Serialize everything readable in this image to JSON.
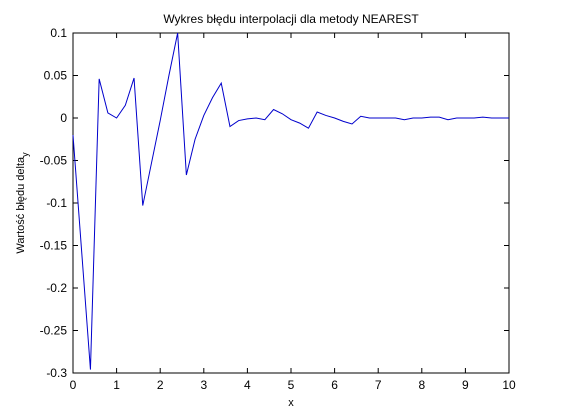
{
  "chart_data": {
    "type": "line",
    "title": "Wykres błędu interpolacji dla metody NEAREST",
    "xlabel": "x",
    "ylabel_main": "Wartość błędu delta",
    "ylabel_sub": "y",
    "xlim": [
      0,
      10
    ],
    "ylim": [
      -0.3,
      0.1
    ],
    "xticks": [
      0,
      1,
      2,
      3,
      4,
      5,
      6,
      7,
      8,
      9,
      10
    ],
    "xtick_labels": [
      "0",
      "1",
      "2",
      "3",
      "4",
      "5",
      "6",
      "7",
      "8",
      "9",
      "10"
    ],
    "yticks": [
      0.1,
      0.05,
      0,
      -0.05,
      -0.1,
      -0.15,
      -0.2,
      -0.25,
      -0.3
    ],
    "ytick_labels": [
      "0.1",
      "0.05",
      "0",
      "-0.05",
      "-0.1",
      "-0.15",
      "-0.2",
      "-0.25",
      "-0.3"
    ],
    "grid": false,
    "line_color": "#0000cc",
    "series": [
      {
        "x": [
          0,
          0.4,
          0.6,
          0.8,
          1.0,
          1.2,
          1.4,
          1.6,
          1.8,
          2.0,
          2.2,
          2.4,
          2.6,
          2.8,
          3.0,
          3.2,
          3.4,
          3.6,
          3.8,
          4.0,
          4.2,
          4.4,
          4.6,
          4.8,
          5.0,
          5.2,
          5.4,
          5.6,
          5.8,
          6.0,
          6.2,
          6.4,
          6.6,
          6.8,
          7.0,
          7.2,
          7.4,
          7.6,
          7.8,
          8.0,
          8.2,
          8.4,
          8.6,
          8.8,
          9.0,
          9.2,
          9.4,
          9.6,
          9.8,
          10.0
        ],
        "values": [
          -0.02,
          -0.296,
          0.046,
          0.006,
          0.0,
          0.015,
          0.047,
          -0.103,
          -0.053,
          -0.003,
          0.05,
          0.1,
          -0.067,
          -0.025,
          0.003,
          0.024,
          0.041,
          -0.01,
          -0.003,
          -0.001,
          0.0,
          -0.002,
          0.01,
          0.005,
          -0.002,
          -0.006,
          -0.012,
          0.007,
          0.003,
          0.0,
          -0.004,
          -0.007,
          0.002,
          0.0,
          0.0,
          0.0,
          0.0,
          -0.002,
          0.0,
          0.0,
          0.001,
          0.001,
          -0.002,
          0.0,
          0.0,
          0.0,
          0.001,
          0.0,
          0.0,
          0.0
        ]
      }
    ]
  }
}
